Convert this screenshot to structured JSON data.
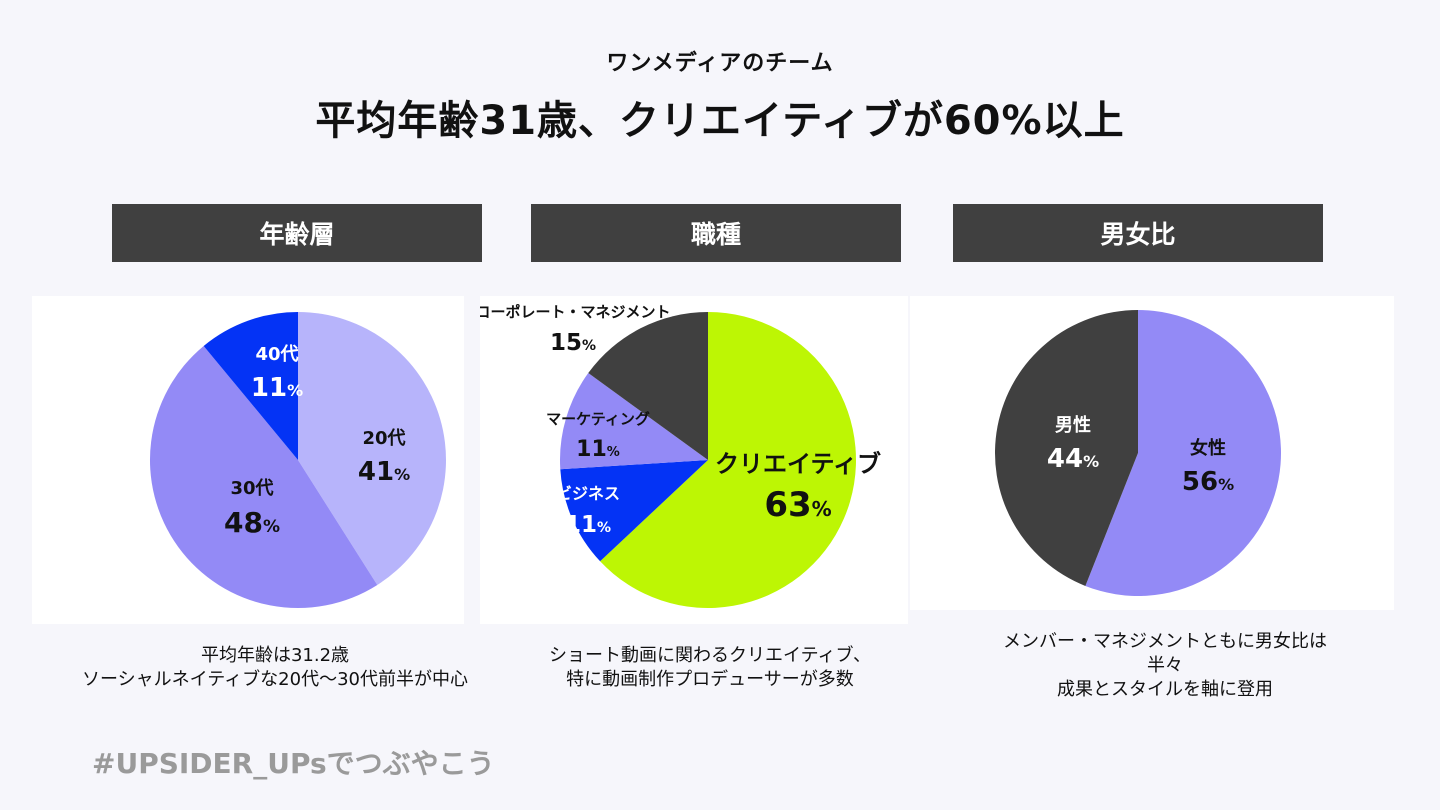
{
  "header": {
    "subtitle": "ワンメディアのチーム",
    "title": "平均年齢31歳、クリエイティブが60%以上"
  },
  "panels": [
    {
      "header": "年齢層",
      "caption": [
        "平均年齢は31.2歳",
        "ソーシャルネイティブな20代〜30代前半が中心"
      ]
    },
    {
      "header": "職種",
      "caption": [
        "ショート動画に関わるクリエイティブ、",
        "特に動画制作プロデューサーが多数"
      ]
    },
    {
      "header": "男女比",
      "caption": [
        "メンバー・マネジメントともに男女比は",
        "半々",
        "成果とスタイルを軸に登用"
      ]
    }
  ],
  "chart_data": [
    {
      "type": "pie",
      "title": "年齢層",
      "slices": [
        {
          "label": "20代",
          "value": 41,
          "display": "41",
          "color": "#b7b4fb",
          "text_color": "#111111"
        },
        {
          "label": "30代",
          "value": 48,
          "display": "48",
          "color": "#938af6",
          "text_color": "#111111"
        },
        {
          "label": "40代",
          "value": 11,
          "display": "11",
          "color": "#0433f5",
          "text_color": "#ffffff"
        }
      ]
    },
    {
      "type": "pie",
      "title": "職種",
      "slices": [
        {
          "label": "クリエイティブ",
          "value": 63,
          "display": "63",
          "color": "#bdf604",
          "text_color": "#111111"
        },
        {
          "label": "ビジネス",
          "value": 11,
          "display": "11",
          "color": "#0433f5",
          "text_color": "#ffffff"
        },
        {
          "label": "マーケティング",
          "value": 11,
          "display": "11",
          "color": "#938af6",
          "text_color": "#111111"
        },
        {
          "label": "コーポレート・マネジメント",
          "value": 15,
          "display": "15",
          "color": "#404040",
          "text_color": "#111111"
        }
      ]
    },
    {
      "type": "pie",
      "title": "男女比",
      "slices": [
        {
          "label": "女性",
          "value": 56,
          "display": "56",
          "color": "#938af6",
          "text_color": "#111111"
        },
        {
          "label": "男性",
          "value": 44,
          "display": "44",
          "color": "#404040",
          "text_color": "#ffffff"
        }
      ]
    }
  ],
  "percent_symbol": "%",
  "footer": {
    "hashtag": "#UPSIDER_UPsでつぶやこう"
  }
}
